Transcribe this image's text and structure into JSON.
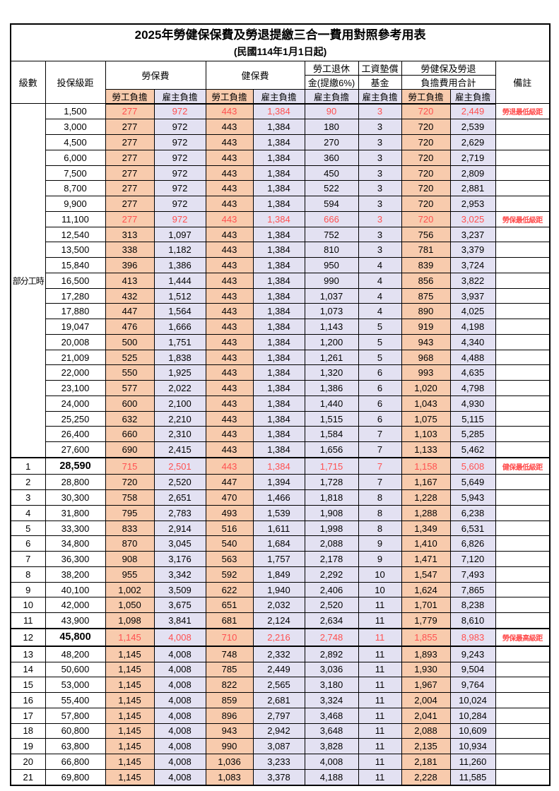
{
  "title": "2025年勞健保保費及勞退提繳三合一費用對照參考用表",
  "subtitle": "(民國114年1月1日起)",
  "header": {
    "level": "級數",
    "salary_bracket": "投保級距",
    "labor_insurance": "勞保費",
    "health_insurance": "健保費",
    "pension_line1": "勞工退休",
    "pension_line2": "金(提繳6%)",
    "wage_fund_line1": "工資墊償",
    "wage_fund_line2": "基金",
    "total_line1": "勞健保及勞退",
    "total_line2": "負擔費用合計",
    "remark": "備註",
    "employee_share": "勞工負擔",
    "employer_share": "雇主負擔"
  },
  "part_time_label": "部分工時",
  "colors": {
    "employee_bg": "#F8CBAD",
    "employer_bg": "#E3E1F2",
    "highlight_red": "#FF5050",
    "remark_red": "#FF4C4C"
  },
  "rows": [
    {
      "level": "部分工時",
      "level_rowspan": 23,
      "salary": "1,500",
      "values": [
        "277",
        "972",
        "443",
        "1,384",
        "90",
        "3",
        "720",
        "2,449"
      ],
      "remark": "勞退最低級距",
      "red": true
    },
    {
      "salary": "3,000",
      "values": [
        "277",
        "972",
        "443",
        "1,384",
        "180",
        "3",
        "720",
        "2,539"
      ]
    },
    {
      "salary": "4,500",
      "values": [
        "277",
        "972",
        "443",
        "1,384",
        "270",
        "3",
        "720",
        "2,629"
      ]
    },
    {
      "salary": "6,000",
      "values": [
        "277",
        "972",
        "443",
        "1,384",
        "360",
        "3",
        "720",
        "2,719"
      ]
    },
    {
      "salary": "7,500",
      "values": [
        "277",
        "972",
        "443",
        "1,384",
        "450",
        "3",
        "720",
        "2,809"
      ]
    },
    {
      "salary": "8,700",
      "values": [
        "277",
        "972",
        "443",
        "1,384",
        "522",
        "3",
        "720",
        "2,881"
      ]
    },
    {
      "salary": "9,900",
      "values": [
        "277",
        "972",
        "443",
        "1,384",
        "594",
        "3",
        "720",
        "2,953"
      ]
    },
    {
      "salary": "11,100",
      "values": [
        "277",
        "972",
        "443",
        "1,384",
        "666",
        "3",
        "720",
        "3,025"
      ],
      "remark": "勞保最低級距",
      "red": true
    },
    {
      "salary": "12,540",
      "values": [
        "313",
        "1,097",
        "443",
        "1,384",
        "752",
        "3",
        "756",
        "3,237"
      ]
    },
    {
      "salary": "13,500",
      "values": [
        "338",
        "1,182",
        "443",
        "1,384",
        "810",
        "3",
        "781",
        "3,379"
      ]
    },
    {
      "salary": "15,840",
      "values": [
        "396",
        "1,386",
        "443",
        "1,384",
        "950",
        "4",
        "839",
        "3,724"
      ]
    },
    {
      "salary": "16,500",
      "values": [
        "413",
        "1,444",
        "443",
        "1,384",
        "990",
        "4",
        "856",
        "3,822"
      ]
    },
    {
      "salary": "17,280",
      "values": [
        "432",
        "1,512",
        "443",
        "1,384",
        "1,037",
        "4",
        "875",
        "3,937"
      ]
    },
    {
      "salary": "17,880",
      "values": [
        "447",
        "1,564",
        "443",
        "1,384",
        "1,073",
        "4",
        "890",
        "4,025"
      ]
    },
    {
      "salary": "19,047",
      "values": [
        "476",
        "1,666",
        "443",
        "1,384",
        "1,143",
        "5",
        "919",
        "4,198"
      ]
    },
    {
      "salary": "20,008",
      "values": [
        "500",
        "1,751",
        "443",
        "1,384",
        "1,200",
        "5",
        "943",
        "4,340"
      ]
    },
    {
      "salary": "21,009",
      "values": [
        "525",
        "1,838",
        "443",
        "1,384",
        "1,261",
        "5",
        "968",
        "4,488"
      ]
    },
    {
      "salary": "22,000",
      "values": [
        "550",
        "1,925",
        "443",
        "1,384",
        "1,320",
        "6",
        "993",
        "4,635"
      ]
    },
    {
      "salary": "23,100",
      "values": [
        "577",
        "2,022",
        "443",
        "1,384",
        "1,386",
        "6",
        "1,020",
        "4,798"
      ]
    },
    {
      "salary": "24,000",
      "values": [
        "600",
        "2,100",
        "443",
        "1,384",
        "1,440",
        "6",
        "1,043",
        "4,930"
      ]
    },
    {
      "salary": "25,250",
      "values": [
        "632",
        "2,210",
        "443",
        "1,384",
        "1,515",
        "6",
        "1,075",
        "5,115"
      ]
    },
    {
      "salary": "26,400",
      "values": [
        "660",
        "2,310",
        "443",
        "1,384",
        "1,584",
        "7",
        "1,103",
        "5,285"
      ]
    },
    {
      "salary": "27,600",
      "values": [
        "690",
        "2,415",
        "443",
        "1,384",
        "1,656",
        "7",
        "1,133",
        "5,462"
      ]
    },
    {
      "level": "1",
      "salary": "28,590",
      "values": [
        "715",
        "2,501",
        "443",
        "1,384",
        "1,715",
        "7",
        "1,158",
        "5,608"
      ],
      "remark": "健保最低級距",
      "red": true,
      "bold_salary": true,
      "thick_top": true
    },
    {
      "level": "2",
      "salary": "28,800",
      "values": [
        "720",
        "2,520",
        "447",
        "1,394",
        "1,728",
        "7",
        "1,167",
        "5,649"
      ]
    },
    {
      "level": "3",
      "salary": "30,300",
      "values": [
        "758",
        "2,651",
        "470",
        "1,466",
        "1,818",
        "8",
        "1,228",
        "5,943"
      ]
    },
    {
      "level": "4",
      "salary": "31,800",
      "values": [
        "795",
        "2,783",
        "493",
        "1,539",
        "1,908",
        "8",
        "1,288",
        "6,238"
      ]
    },
    {
      "level": "5",
      "salary": "33,300",
      "values": [
        "833",
        "2,914",
        "516",
        "1,611",
        "1,998",
        "8",
        "1,349",
        "6,531"
      ]
    },
    {
      "level": "6",
      "salary": "34,800",
      "values": [
        "870",
        "3,045",
        "540",
        "1,684",
        "2,088",
        "9",
        "1,410",
        "6,826"
      ]
    },
    {
      "level": "7",
      "salary": "36,300",
      "values": [
        "908",
        "3,176",
        "563",
        "1,757",
        "2,178",
        "9",
        "1,471",
        "7,120"
      ]
    },
    {
      "level": "8",
      "salary": "38,200",
      "values": [
        "955",
        "3,342",
        "592",
        "1,849",
        "2,292",
        "10",
        "1,547",
        "7,493"
      ]
    },
    {
      "level": "9",
      "salary": "40,100",
      "values": [
        "1,002",
        "3,509",
        "622",
        "1,940",
        "2,406",
        "10",
        "1,624",
        "7,865"
      ]
    },
    {
      "level": "10",
      "salary": "42,000",
      "values": [
        "1,050",
        "3,675",
        "651",
        "2,032",
        "2,520",
        "11",
        "1,701",
        "8,238"
      ]
    },
    {
      "level": "11",
      "salary": "43,900",
      "values": [
        "1,098",
        "3,841",
        "681",
        "2,124",
        "2,634",
        "11",
        "1,779",
        "8,610"
      ]
    },
    {
      "level": "12",
      "salary": "45,800",
      "values": [
        "1,145",
        "4,008",
        "710",
        "2,216",
        "2,748",
        "11",
        "1,855",
        "8,983"
      ],
      "remark": "勞保最高級距",
      "red": true,
      "bold_salary": true,
      "thick_top": true,
      "thick_bottom": true
    },
    {
      "level": "13",
      "salary": "48,200",
      "values": [
        "1,145",
        "4,008",
        "748",
        "2,332",
        "2,892",
        "11",
        "1,893",
        "9,243"
      ]
    },
    {
      "level": "14",
      "salary": "50,600",
      "values": [
        "1,145",
        "4,008",
        "785",
        "2,449",
        "3,036",
        "11",
        "1,930",
        "9,504"
      ]
    },
    {
      "level": "15",
      "salary": "53,000",
      "values": [
        "1,145",
        "4,008",
        "822",
        "2,565",
        "3,180",
        "11",
        "1,967",
        "9,764"
      ]
    },
    {
      "level": "16",
      "salary": "55,400",
      "values": [
        "1,145",
        "4,008",
        "859",
        "2,681",
        "3,324",
        "11",
        "2,004",
        "10,024"
      ]
    },
    {
      "level": "17",
      "salary": "57,800",
      "values": [
        "1,145",
        "4,008",
        "896",
        "2,797",
        "3,468",
        "11",
        "2,041",
        "10,284"
      ]
    },
    {
      "level": "18",
      "salary": "60,800",
      "values": [
        "1,145",
        "4,008",
        "943",
        "2,942",
        "3,648",
        "11",
        "2,088",
        "10,609"
      ]
    },
    {
      "level": "19",
      "salary": "63,800",
      "values": [
        "1,145",
        "4,008",
        "990",
        "3,087",
        "3,828",
        "11",
        "2,135",
        "10,934"
      ]
    },
    {
      "level": "20",
      "salary": "66,800",
      "values": [
        "1,145",
        "4,008",
        "1,036",
        "3,233",
        "4,008",
        "11",
        "2,181",
        "11,260"
      ]
    },
    {
      "level": "21",
      "salary": "69,800",
      "values": [
        "1,145",
        "4,008",
        "1,083",
        "3,378",
        "4,188",
        "11",
        "2,228",
        "11,585"
      ]
    }
  ]
}
